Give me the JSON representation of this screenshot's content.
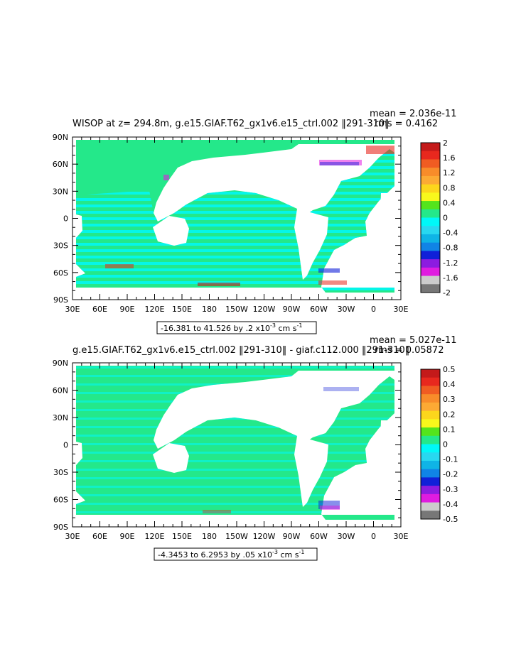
{
  "chart_data": [
    {
      "type": "heatmap",
      "title": "WISOP at z= 294.8m, g.e15.GIAF.T62_gx1v6.e15_ctrl.002 ‖291-310‖",
      "mean_text": "mean = 2.036e-11",
      "rms_text": "rms = 0.4162",
      "range_text": "-16.381 to 41.526 by .2 x10",
      "range_exp": "-3",
      "range_units": " cm s",
      "range_units_exp": "-1",
      "x_tick_labels": [
        "30E",
        "60E",
        "90E",
        "120E",
        "150E",
        "180",
        "150W",
        "120W",
        "90W",
        "60W",
        "30W",
        "0",
        "30E"
      ],
      "y_tick_labels": [
        "90N",
        "60N",
        "30N",
        "0",
        "30S",
        "60S",
        "90S"
      ],
      "colorbar_labels": [
        "2",
        "1.6",
        "1.2",
        "0.8",
        "0.4",
        "0",
        "-0.4",
        "-0.8",
        "-1.2",
        "-1.6",
        "-2"
      ],
      "colorbar_colors": [
        "#c41a1a",
        "#e8281e",
        "#f05c22",
        "#f88c2a",
        "#fcaa34",
        "#fcd61c",
        "#f8f81c",
        "#54e41c",
        "#24e88a",
        "#00f8f8",
        "#28d8f0",
        "#0fb4e6",
        "#1084e6",
        "#1020d8",
        "#8c1ce0",
        "#e01ce0",
        "#cccccc",
        "#777777"
      ]
    },
    {
      "type": "heatmap",
      "title": "g.e15.GIAF.T62_gx1v6.e15_ctrl.002 ‖291-310‖ - giaf.c112.000 ‖291-310‖",
      "mean_text": "mean = 5.027e-11",
      "rms_text": "rms = 0.05872",
      "range_text": "-4.3453 to 6.2953 by .05 x10",
      "range_exp": "-3",
      "range_units": " cm s",
      "range_units_exp": "-1",
      "x_tick_labels": [
        "30E",
        "60E",
        "90E",
        "120E",
        "150E",
        "180",
        "150W",
        "120W",
        "90W",
        "60W",
        "30W",
        "0",
        "30E"
      ],
      "y_tick_labels": [
        "90N",
        "60N",
        "30N",
        "0",
        "30S",
        "60S",
        "90S"
      ],
      "colorbar_labels": [
        "0.5",
        "0.4",
        "0.3",
        "0.2",
        "0.1",
        "0",
        "-0.1",
        "-0.2",
        "-0.3",
        "-0.4",
        "-0.5"
      ],
      "colorbar_colors": [
        "#c41a1a",
        "#e8281e",
        "#f05c22",
        "#f88c2a",
        "#fcaa34",
        "#fcd61c",
        "#f8f81c",
        "#54e41c",
        "#24e88a",
        "#00f8f8",
        "#28d8f0",
        "#0fb4e6",
        "#1084e6",
        "#1020d8",
        "#8c1ce0",
        "#e01ce0",
        "#cccccc",
        "#777777"
      ]
    }
  ],
  "colors": {
    "ocean_main": "#24e88a",
    "ocean_cyan": "#00f8f8",
    "land": "#ffffff",
    "frame": "#000000"
  }
}
